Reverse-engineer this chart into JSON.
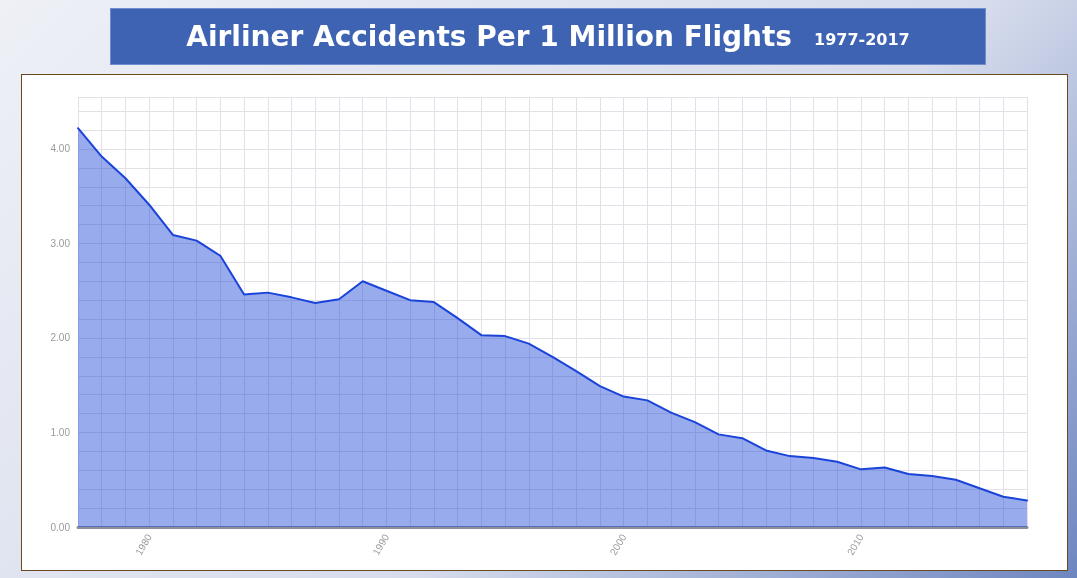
{
  "chart_data": {
    "type": "area",
    "title": "Airliner Accidents Per 1 Million Flights",
    "subtitle": "1977-2017",
    "x": [
      1977,
      1978,
      1979,
      1980,
      1981,
      1982,
      1983,
      1984,
      1985,
      1986,
      1987,
      1988,
      1989,
      1990,
      1991,
      1992,
      1993,
      1994,
      1995,
      1996,
      1997,
      1998,
      1999,
      2000,
      2001,
      2002,
      2003,
      2004,
      2005,
      2006,
      2007,
      2008,
      2009,
      2010,
      2011,
      2012,
      2013,
      2014,
      2015,
      2016,
      2017
    ],
    "series": [
      {
        "color": "#1a44d8",
        "values": [
          4.22,
          3.92,
          3.69,
          3.41,
          3.09,
          3.03,
          2.87,
          2.46,
          2.48,
          2.43,
          2.37,
          2.41,
          2.6,
          2.5,
          2.4,
          2.38,
          2.21,
          2.03,
          2.02,
          1.94,
          1.8,
          1.65,
          1.49,
          1.38,
          1.34,
          1.21,
          1.11,
          0.98,
          0.94,
          0.81,
          0.75,
          0.73,
          0.69,
          0.61,
          0.63,
          0.56,
          0.54,
          0.5,
          0.41,
          0.32,
          0.28
        ]
      }
    ],
    "xlim": [
      1977,
      2017
    ],
    "xticks": [
      1980,
      1990,
      2000,
      2010
    ],
    "ylim": [
      0,
      4.55
    ],
    "yticks": [
      {
        "value": 0,
        "label": "0.00"
      },
      {
        "value": 1,
        "label": "1.00"
      },
      {
        "value": 2,
        "label": "2.00"
      },
      {
        "value": 3,
        "label": "3.00"
      },
      {
        "value": 4,
        "label": "4.00"
      }
    ],
    "grid": true,
    "marker": "none",
    "line_style": "solid"
  }
}
